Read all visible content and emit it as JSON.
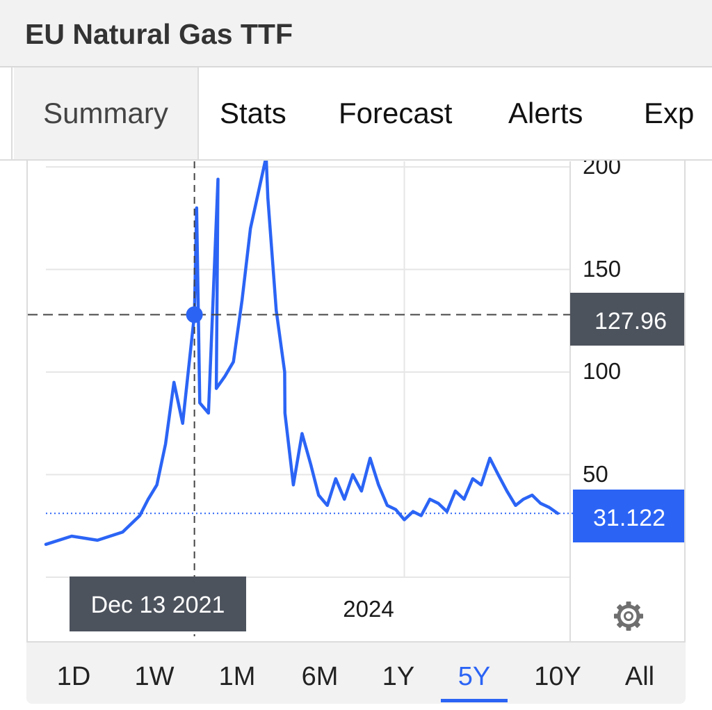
{
  "header": {
    "title": "EU Natural Gas TTF"
  },
  "tabs": [
    {
      "label": "Summary",
      "active": true
    },
    {
      "label": "Stats"
    },
    {
      "label": "Forecast"
    },
    {
      "label": "Alerts"
    },
    {
      "label": "Exp"
    }
  ],
  "ranges": [
    {
      "label": "1D"
    },
    {
      "label": "1W"
    },
    {
      "label": "1M"
    },
    {
      "label": "6M"
    },
    {
      "label": "1Y"
    },
    {
      "label": "5Y",
      "active": true
    },
    {
      "label": "10Y"
    },
    {
      "label": "All"
    }
  ],
  "icons": {
    "settings": "gear-icon"
  },
  "colors": {
    "line": "#2b64f5",
    "crosshair_label_bg": "#4d535d",
    "last_value_bg": "#2b64f5",
    "grid": "#e6e6e6"
  },
  "chart_data": {
    "type": "line",
    "series": [
      {
        "x": [
          "2020-07",
          "2020-10",
          "2021-01",
          "2021-04",
          "2021-06",
          "2021-07",
          "2021-08",
          "2021-09",
          "2021-10",
          "2021-11",
          "2021-12-13",
          "2021-12-21",
          "2022-01",
          "2022-02",
          "2022-03-07",
          "2022-03",
          "2022-04",
          "2022-05",
          "2022-06",
          "2022-07",
          "2022-08-26",
          "2022-09",
          "2022-10",
          "2022-10-31",
          "2022-11",
          "2022-12",
          "2023-01",
          "2023-02",
          "2023-03",
          "2023-04",
          "2023-05",
          "2023-06",
          "2023-07",
          "2023-08",
          "2023-09",
          "2023-10",
          "2023-11",
          "2023-12",
          "2024-01",
          "2024-02",
          "2024-03",
          "2024-04",
          "2024-05",
          "2024-06",
          "2024-07",
          "2024-08",
          "2024-09",
          "2024-10",
          "2024-11",
          "2024-12",
          "2025-01",
          "2025-02",
          "2025-03",
          "2025-04",
          "2025-05",
          "2025-06",
          "2025-07"
        ],
        "values": [
          16,
          20,
          18,
          22,
          30,
          38,
          45,
          65,
          95,
          75,
          127.96,
          180,
          85,
          80,
          194,
          92,
          98,
          105,
          135,
          170,
          205,
          185,
          130,
          100,
          80,
          45,
          70,
          55,
          40,
          35,
          48,
          38,
          50,
          42,
          58,
          45,
          35,
          33,
          28,
          32,
          30,
          38,
          36,
          32,
          42,
          38,
          48,
          45,
          58,
          50,
          42,
          35,
          38,
          40,
          36,
          34,
          31.122
        ]
      }
    ],
    "x_tick_labels": [
      "2024"
    ],
    "y_tick_labels": [
      "200",
      "150",
      "100",
      "50"
    ],
    "ylim": [
      0,
      200
    ],
    "crosshair": {
      "date": "Dec 13 2021",
      "value": "127.96"
    },
    "last_value": "31.122",
    "grid": true
  }
}
